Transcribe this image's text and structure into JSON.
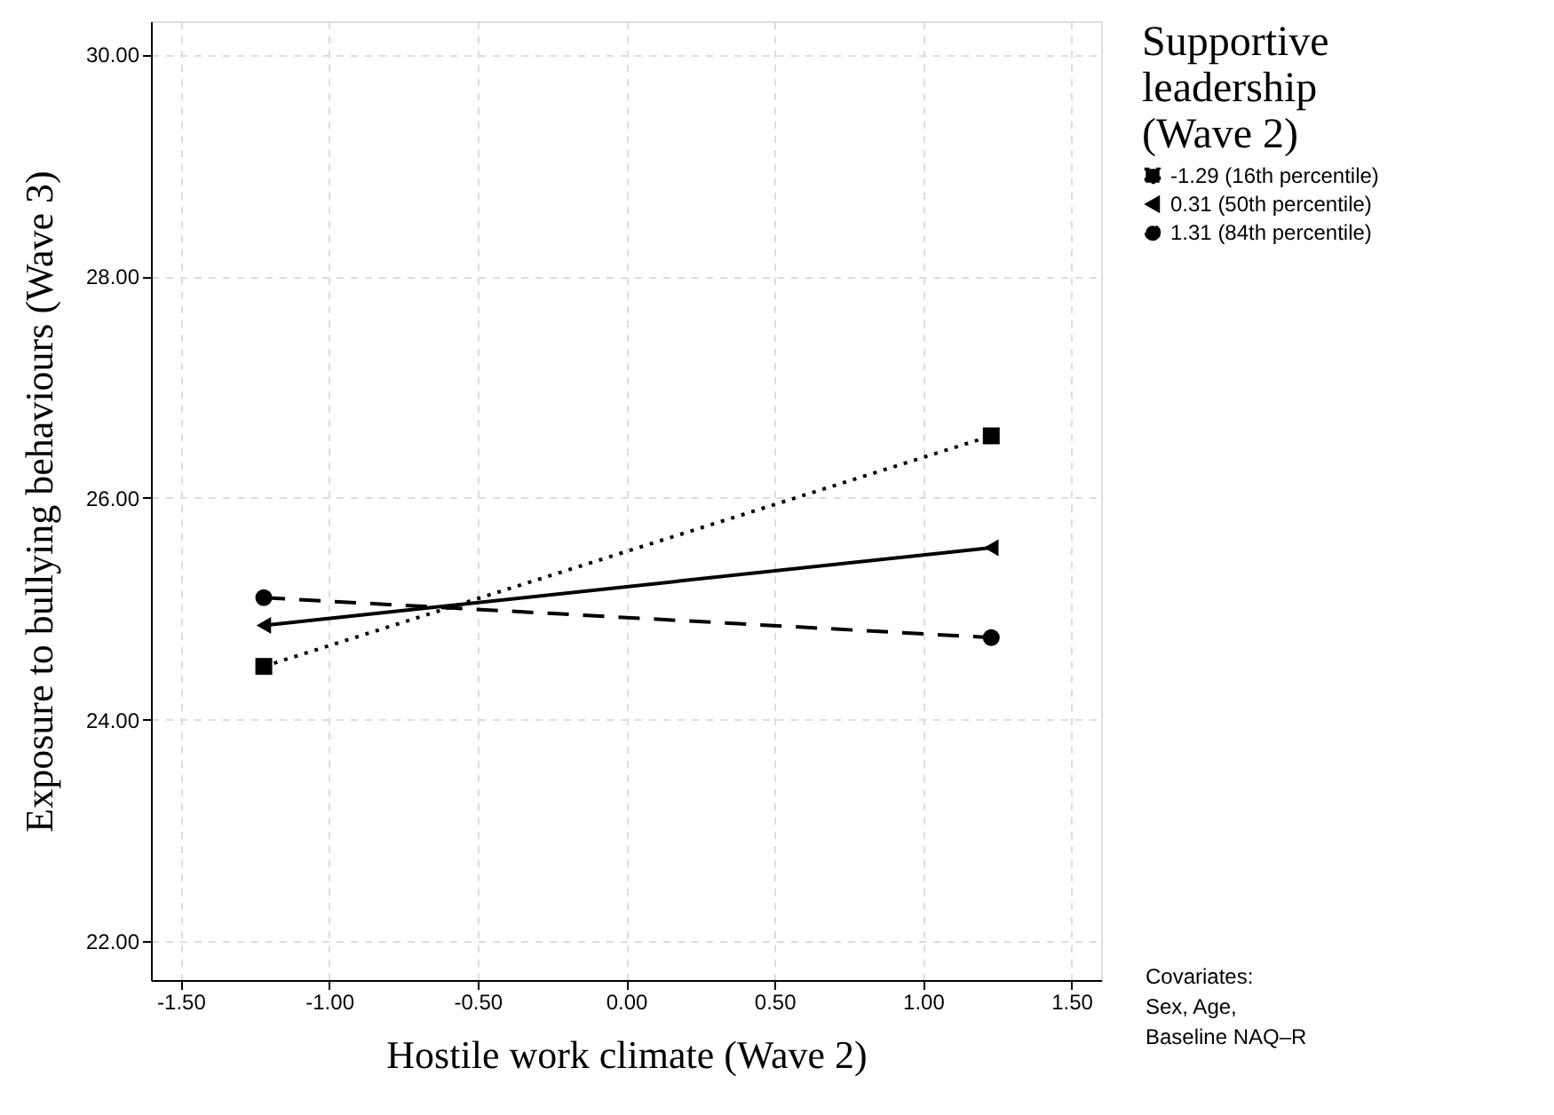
{
  "chart_data": {
    "type": "line",
    "xlabel": "Hostile work climate (Wave 2)",
    "ylabel": "Exposure to bullying behaviours (Wave 3)",
    "legend_title": "Supportive\nleadership\n(Wave 2)",
    "x": [
      -1.22,
      1.23
    ],
    "series": [
      {
        "name": "-1.29 (16th percentile)",
        "color": "#000000",
        "values": [
          24.48,
          26.56
        ],
        "marker": "square",
        "line_style": "dotted"
      },
      {
        "name": "0.31 (50th percentile)",
        "color": "#000000",
        "values": [
          24.85,
          25.55
        ],
        "marker": "triangle-left",
        "line_style": "solid"
      },
      {
        "name": "1.31 (84th percentile)",
        "color": "#000000",
        "values": [
          25.1,
          24.74
        ],
        "marker": "circle",
        "line_style": "dashed"
      }
    ],
    "xlim": [
      -1.6,
      1.6
    ],
    "xticks": [
      {
        "value": -1.5,
        "label": "-1.50"
      },
      {
        "value": -1,
        "label": "-1.00"
      },
      {
        "value": -0.5,
        "label": "-0.50"
      },
      {
        "value": 0,
        "label": "0.00"
      },
      {
        "value": 0.5,
        "label": "0.50"
      },
      {
        "value": 1,
        "label": "1.00"
      },
      {
        "value": 1.5,
        "label": "1.50"
      }
    ],
    "ylim": [
      21.65,
      30.3
    ],
    "yticks": [
      {
        "value": 22,
        "label": "22.00"
      },
      {
        "value": 24,
        "label": "24.00"
      },
      {
        "value": 26,
        "label": "26.00"
      },
      {
        "value": 28,
        "label": "28.00"
      },
      {
        "value": 30,
        "label": "30.00"
      }
    ],
    "grid": true,
    "legend": "top right",
    "annotations": [
      "Covariates:\nSex, Age,\nBaseline NAQ–R"
    ]
  }
}
